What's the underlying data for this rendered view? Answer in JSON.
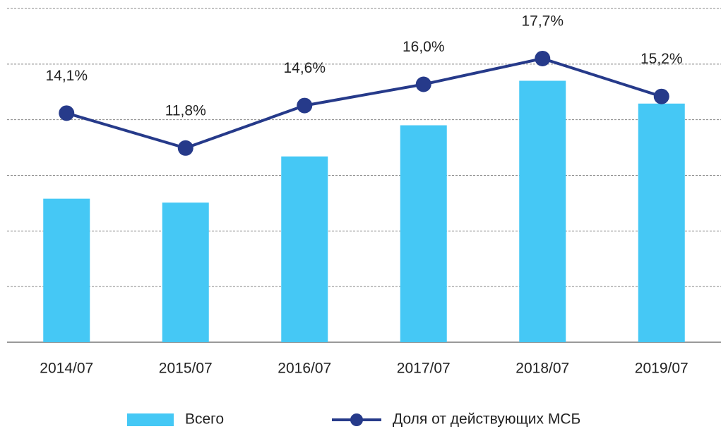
{
  "chart_data": {
    "type": "bar_line",
    "categories": [
      "2014/07",
      "2015/07",
      "2016/07",
      "2017/07",
      "2018/07",
      "2019/07"
    ],
    "series": [
      {
        "name": "Всего",
        "type": "bar",
        "color": "#45c8f5",
        "values": [
          2.58,
          2.51,
          3.34,
          3.9,
          4.7,
          4.29
        ]
      },
      {
        "name": "Доля от действующих МСБ",
        "type": "line",
        "axis": "y2",
        "color": "#263a8a",
        "values": [
          14.1,
          11.8,
          14.6,
          16.0,
          17.7,
          15.2
        ],
        "value_labels": [
          "14,1%",
          "11,8%",
          "14,6%",
          "16,0%",
          "17,7%",
          "15,2%"
        ]
      }
    ],
    "ylim": [
      0,
      6
    ],
    "yticks": [
      0,
      1,
      2,
      3,
      4,
      5,
      6
    ],
    "y2lim": [
      -1,
      21
    ],
    "grid": true,
    "legend": "bottom"
  }
}
